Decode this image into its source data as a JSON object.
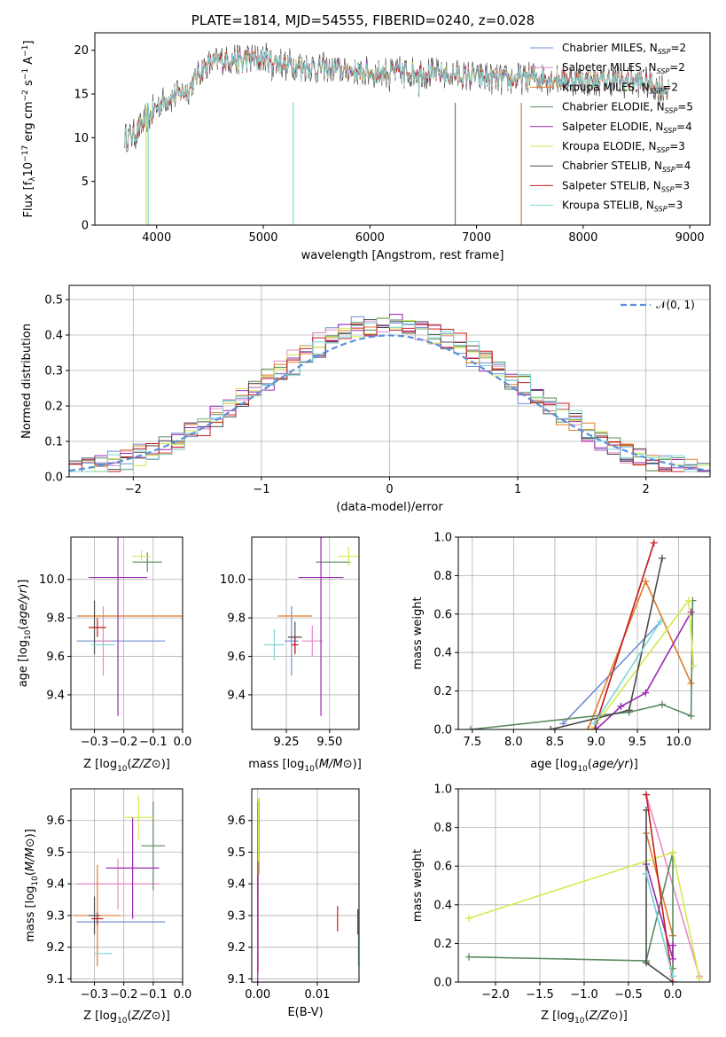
{
  "colors": [
    "#6f8fd6",
    "#e88ac7",
    "#e07b29",
    "#5a8a5f",
    "#9b27b0",
    "#d4ea4e",
    "#4d4d4d",
    "#c41f1f",
    "#7fd6d8"
  ],
  "chart_data": [
    {
      "type": "line",
      "title": "PLATE=1814, MJD=54555, FIBERID=0240, z=0.028",
      "xlabel": "wavelength [Angstrom, rest frame]",
      "ylabel": "Flux [fλ10⁻¹⁷ erg cm⁻² s⁻¹ A⁻¹]",
      "xlim": [
        3420,
        9190
      ],
      "ylim": [
        0,
        22
      ],
      "xticks": [
        "4000",
        "5000",
        "6000",
        "7000",
        "8000",
        "9000"
      ],
      "yticks": [
        "0",
        "5",
        "10",
        "15",
        "20"
      ],
      "legend_position": "top-right",
      "series": [
        {
          "name": "Chabrier MILES, N",
          "sub": "SSP",
          "suffix": "=2"
        },
        {
          "name": "Salpeter MILES, N",
          "sub": "SSP",
          "suffix": "=2"
        },
        {
          "name": "Kroupa MILES, N",
          "sub": "SSP",
          "suffix": "=2"
        },
        {
          "name": "Chabrier ELODIE, N",
          "sub": "SSP",
          "suffix": "=5"
        },
        {
          "name": "Salpeter ELODIE, N",
          "sub": "SSP",
          "suffix": "=4"
        },
        {
          "name": "Kroupa ELODIE, N",
          "sub": "SSP",
          "suffix": "=3"
        },
        {
          "name": "Chabrier STELIB, N",
          "sub": "SSP",
          "suffix": "=4"
        },
        {
          "name": "Salpeter STELIB, N",
          "sub": "SSP",
          "suffix": "=3"
        },
        {
          "name": "Kroupa STELIB, N",
          "sub": "SSP",
          "suffix": "=3"
        }
      ],
      "spectrum_trend": {
        "x": [
          3700,
          3800,
          3900,
          4000,
          4100,
          4200,
          4300,
          4400,
          4500,
          4700,
          5000,
          5200,
          5500,
          6000,
          6500,
          7000,
          7300,
          7500,
          8000,
          8500,
          8800
        ],
        "y": [
          10,
          10.5,
          12,
          13.5,
          14.5,
          15,
          15.5,
          17.5,
          18.5,
          19,
          19,
          18.5,
          18,
          17.5,
          17.5,
          17,
          16.5,
          17,
          16.5,
          16.5,
          15.5
        ]
      }
    },
    {
      "type": "step",
      "xlabel": "(data-model)/error",
      "ylabel": "Normed distribution",
      "xlim": [
        -2.5,
        2.5
      ],
      "ylim": [
        0,
        0.54
      ],
      "xticks": [
        "−2",
        "−1",
        "0",
        "1",
        "2"
      ],
      "yticks": [
        "0.0",
        "0.1",
        "0.2",
        "0.3",
        "0.4",
        "0.5"
      ],
      "legend_label": "𝒩(0, 1)",
      "grid": true
    },
    {
      "type": "errorbar",
      "xlabel": "Z [log10(Z/Z⊙)]",
      "ylabel": "age  [log10(age/yr)]",
      "xlim": [
        -0.38,
        0.0
      ],
      "ylim": [
        9.22,
        10.22
      ],
      "xticks": [
        "−0.3",
        "−0.2",
        "−0.1",
        "0.0"
      ],
      "yticks": [
        "9.4",
        "9.6",
        "9.8",
        "10.0"
      ],
      "points": [
        {
          "x": -0.21,
          "y": 9.68,
          "xerr": 0.15,
          "yerr": 0.0
        },
        {
          "x": -0.27,
          "y": 9.68,
          "xerr": 0.03,
          "yerr": 0.18
        },
        {
          "x": -0.14,
          "y": 9.81,
          "xerr": 0.22,
          "yerr": 0.0
        },
        {
          "x": -0.12,
          "y": 10.09,
          "xerr": 0.05,
          "yerr": 0.05
        },
        {
          "x": -0.22,
          "y": 10.01,
          "xerr": 0.1,
          "yerr": 0.72
        },
        {
          "x": -0.14,
          "y": 10.12,
          "xerr": 0.03,
          "yerr": 0.03
        },
        {
          "x": -0.3,
          "y": 9.75,
          "xerr": 0.0,
          "yerr": 0.14
        },
        {
          "x": -0.29,
          "y": 9.75,
          "xerr": 0.03,
          "yerr": 0.05
        },
        {
          "x": -0.27,
          "y": 9.66,
          "xerr": 0.04,
          "yerr": 0.0
        }
      ]
    },
    {
      "type": "errorbar",
      "xlabel": "mass [log10(M/M⊙)]",
      "ylabel": "",
      "xlim": [
        9.05,
        9.67
      ],
      "ylim": [
        9.22,
        10.22
      ],
      "xticks": [
        "9.25",
        "9.50"
      ],
      "yticks": [
        "9.4",
        "9.6",
        "9.8",
        "10.0"
      ],
      "points": [
        {
          "x": 9.28,
          "y": 9.68,
          "xerr": 0.04,
          "yerr": 0.18
        },
        {
          "x": 9.4,
          "y": 9.68,
          "xerr": 0.06,
          "yerr": 0.08
        },
        {
          "x": 9.3,
          "y": 9.81,
          "xerr": 0.1,
          "yerr": 0.0
        },
        {
          "x": 9.52,
          "y": 10.09,
          "xerr": 0.1,
          "yerr": 0.0
        },
        {
          "x": 9.45,
          "y": 10.01,
          "xerr": 0.13,
          "yerr": 0.72
        },
        {
          "x": 9.61,
          "y": 10.12,
          "xerr": 0.06,
          "yerr": 0.05
        },
        {
          "x": 9.3,
          "y": 9.7,
          "xerr": 0.04,
          "yerr": 0.08
        },
        {
          "x": 9.3,
          "y": 9.66,
          "xerr": 0.02,
          "yerr": 0.05
        },
        {
          "x": 9.18,
          "y": 9.66,
          "xerr": 0.06,
          "yerr": 0.08
        }
      ]
    },
    {
      "type": "line",
      "xlabel": "age  [log10(age/yr)]",
      "ylabel": "mass weight",
      "xlim": [
        7.33,
        10.38
      ],
      "ylim": [
        0,
        1.0
      ],
      "xticks": [
        "7.5",
        "8.0",
        "8.5",
        "9.0",
        "9.5",
        "10.0"
      ],
      "yticks": [
        "0.0",
        "0.2",
        "0.4",
        "0.6",
        "0.8",
        "1.0"
      ],
      "series": [
        {
          "x": [
            8.6,
            9.78
          ],
          "y": [
            0.03,
            0.56
          ]
        },
        {
          "x": [
            9.0,
            9.7
          ],
          "y": [
            0.03,
            0.97
          ]
        },
        {
          "x": [
            8.9,
            9.6,
            10.15
          ],
          "y": [
            0.0,
            0.77,
            0.24
          ]
        },
        {
          "x": [
            7.48,
            9.4,
            9.8,
            10.15,
            10.17
          ],
          "y": [
            0.0,
            0.09,
            0.13,
            0.07,
            0.67
          ]
        },
        {
          "x": [
            9.0,
            9.3,
            9.6,
            10.15
          ],
          "y": [
            0.0,
            0.12,
            0.19,
            0.61
          ]
        },
        {
          "x": [
            8.95,
            10.12,
            10.18
          ],
          "y": [
            0.0,
            0.67,
            0.33
          ]
        },
        {
          "x": [
            8.45,
            9.4,
            9.8
          ],
          "y": [
            0.0,
            0.1,
            0.89
          ]
        },
        {
          "x": [
            8.98,
            9.7
          ],
          "y": [
            0.0,
            0.97
          ]
        },
        {
          "x": [
            8.98,
            9.78
          ],
          "y": [
            0.03,
            0.56
          ]
        }
      ]
    },
    {
      "type": "errorbar",
      "xlabel": "Z [log10(Z/Z⊙)]",
      "ylabel": "mass [log10(M/M⊙)]",
      "xlim": [
        -0.38,
        0.0
      ],
      "ylim": [
        9.09,
        9.7
      ],
      "xticks": [
        "−0.3",
        "−0.2",
        "−0.1",
        "0.0"
      ],
      "yticks": [
        "9.1",
        "9.2",
        "9.3",
        "9.4",
        "9.5",
        "9.6"
      ],
      "points": [
        {
          "x": -0.21,
          "y": 9.28,
          "xerr": 0.15,
          "yerr": 0.0
        },
        {
          "x": -0.22,
          "y": 9.4,
          "xerr": 0.14,
          "yerr": 0.08
        },
        {
          "x": -0.29,
          "y": 9.3,
          "xerr": 0.08,
          "yerr": 0.16
        },
        {
          "x": -0.1,
          "y": 9.52,
          "xerr": 0.04,
          "yerr": 0.14
        },
        {
          "x": -0.17,
          "y": 9.45,
          "xerr": 0.09,
          "yerr": 0.16
        },
        {
          "x": -0.15,
          "y": 9.61,
          "xerr": 0.05,
          "yerr": 0.07
        },
        {
          "x": -0.3,
          "y": 9.3,
          "xerr": 0.02,
          "yerr": 0.06
        },
        {
          "x": -0.29,
          "y": 9.29,
          "xerr": 0.02,
          "yerr": 0.02
        },
        {
          "x": -0.27,
          "y": 9.18,
          "xerr": 0.03,
          "yerr": 0.0
        }
      ]
    },
    {
      "type": "errorbar",
      "xlabel": "E(B-V)",
      "ylabel": "",
      "xlim": [
        -0.001,
        0.017
      ],
      "ylim": [
        9.09,
        9.7
      ],
      "xticks": [
        "0.00",
        "0.01"
      ],
      "yticks": [
        "9.1",
        "9.2",
        "9.3",
        "9.4",
        "9.5",
        "9.6"
      ],
      "points": [
        {
          "x": 0.0,
          "y": 9.4,
          "xerr": 0.0,
          "yerr": 0.15
        },
        {
          "x": 0.0001,
          "y": 9.32,
          "xerr": 0.0,
          "yerr": 0.2
        },
        {
          "x": 0.0002,
          "y": 9.55,
          "xerr": 0.0,
          "yerr": 0.12
        },
        {
          "x": 0.0,
          "y": 9.52,
          "xerr": 0.0,
          "yerr": 0.14
        },
        {
          "x": 0.0,
          "y": 9.25,
          "xerr": 0.0,
          "yerr": 0.18
        },
        {
          "x": 0.0001,
          "y": 9.57,
          "xerr": 0.0,
          "yerr": 0.1
        },
        {
          "x": 0.0168,
          "y": 9.28,
          "xerr": 0.0,
          "yerr": 0.04
        },
        {
          "x": 0.0134,
          "y": 9.29,
          "xerr": 0.0,
          "yerr": 0.04
        },
        {
          "x": 0.0169,
          "y": 9.19,
          "xerr": 0.0,
          "yerr": 0.05
        }
      ]
    },
    {
      "type": "line",
      "xlabel": "Z [log10(Z/Z⊙)]",
      "ylabel": "mass weight",
      "xlim": [
        -2.42,
        0.42
      ],
      "ylim": [
        0,
        1.0
      ],
      "xticks": [
        "−2.0",
        "−1.5",
        "−1.0",
        "−0.5",
        "0.0"
      ],
      "yticks": [
        "0.0",
        "0.2",
        "0.4",
        "0.6",
        "0.8",
        "1.0"
      ],
      "series": [
        {
          "x": [
            -0.3,
            0.0
          ],
          "y": [
            0.56,
            0.03
          ]
        },
        {
          "x": [
            -0.3,
            0.3
          ],
          "y": [
            0.97,
            0.03
          ]
        },
        {
          "x": [
            -0.3,
            0.0
          ],
          "y": [
            0.77,
            0.24
          ]
        },
        {
          "x": [
            -2.3,
            -0.3,
            0.0,
            0.0
          ],
          "y": [
            0.13,
            0.11,
            0.67,
            0.07
          ]
        },
        {
          "x": [
            -0.3,
            0.0,
            0.0
          ],
          "y": [
            0.61,
            0.12,
            0.19
          ]
        },
        {
          "x": [
            -2.3,
            0.0,
            0.3
          ],
          "y": [
            0.33,
            0.67,
            0.02
          ]
        },
        {
          "x": [
            -0.3,
            -0.3,
            0.0
          ],
          "y": [
            0.89,
            0.1,
            0.0
          ]
        },
        {
          "x": [
            -0.3,
            0.0
          ],
          "y": [
            0.97,
            0.0
          ]
        },
        {
          "x": [
            -0.3,
            0.0
          ],
          "y": [
            0.56,
            0.03
          ]
        }
      ]
    }
  ]
}
